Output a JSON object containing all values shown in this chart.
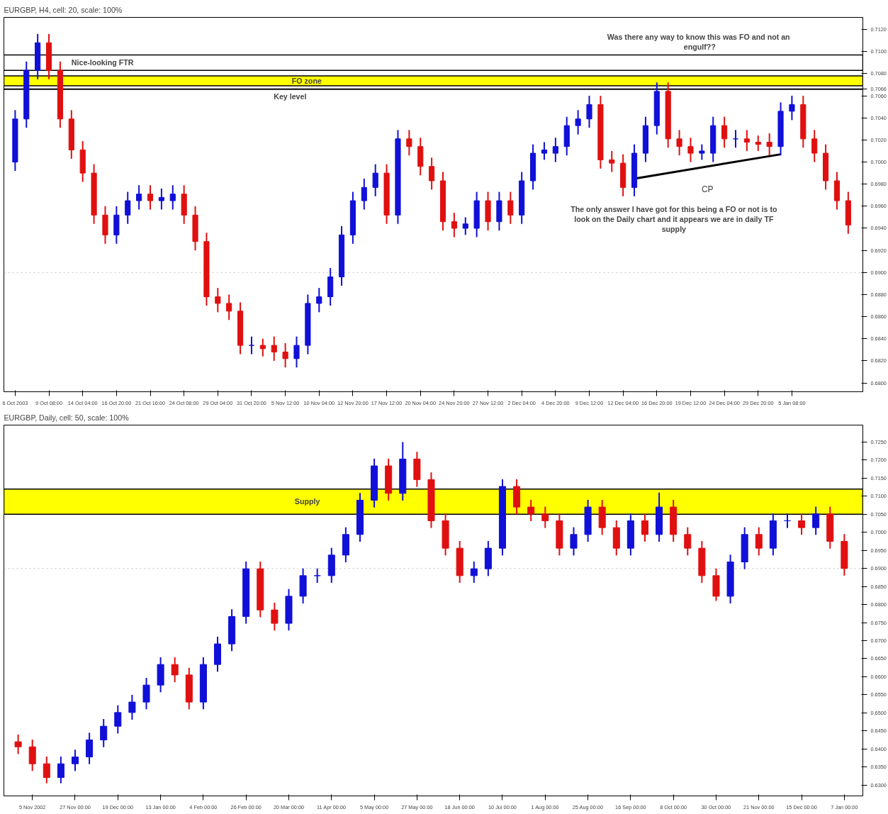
{
  "chart_data": [
    {
      "type": "candlestick",
      "title": "EURGBP, H4, cell: 20, scale: 100%",
      "categories": [
        "6 Oct 2003",
        null,
        null,
        "9 Oct 08:00",
        null,
        null,
        "14 Oct 04:00",
        null,
        null,
        "16 Oct 20:00",
        null,
        null,
        "21 Oct 16:00",
        null,
        null,
        "24 Oct 08:00",
        null,
        null,
        "29 Oct 04:00",
        null,
        null,
        "31 Oct 20:00",
        null,
        null,
        "5 Nov 12:00",
        null,
        null,
        "10 Nov 04:00",
        null,
        null,
        "12 Nov 20:00",
        null,
        null,
        "17 Nov 12:00",
        null,
        null,
        "20 Nov 04:00",
        null,
        null,
        "24 Nov 20:00",
        null,
        null,
        "27 Nov 12:00",
        null,
        null,
        "2 Dec 04:00",
        null,
        null,
        "4 Dec 20:00",
        null,
        null,
        "9 Dec 12:00",
        null,
        null,
        "12 Dec 04:00",
        null,
        null,
        "16 Dec 20:00",
        null,
        null,
        "19 Dec 12:00",
        null,
        null,
        "24 Dec 04:00",
        null,
        null,
        "29 Dec 20:00",
        null,
        null,
        "5 Jan 08:00",
        null,
        null,
        null,
        null,
        null
      ],
      "ohlc": [
        [
          0.7,
          0.7047,
          0.6992,
          0.7039
        ],
        [
          0.7039,
          0.7091,
          0.7031,
          0.7083
        ],
        [
          0.7083,
          0.7116,
          0.7075,
          0.7108
        ],
        [
          0.7108,
          0.7116,
          0.7075,
          0.7083
        ],
        [
          0.7083,
          0.7091,
          0.7031,
          0.7039
        ],
        [
          0.7039,
          0.7047,
          0.7003,
          0.7011
        ],
        [
          0.7011,
          0.7019,
          0.6982,
          0.699
        ],
        [
          0.699,
          0.6998,
          0.6944,
          0.6952
        ],
        [
          0.6952,
          0.696,
          0.6926,
          0.6934
        ],
        [
          0.6934,
          0.696,
          0.6926,
          0.6952
        ],
        [
          0.6952,
          0.6973,
          0.6944,
          0.6965
        ],
        [
          0.6965,
          0.6979,
          0.6957,
          0.6971
        ],
        [
          0.6971,
          0.6979,
          0.6957,
          0.6965
        ],
        [
          0.6965,
          0.6976,
          0.6957,
          0.6968
        ],
        [
          0.6965,
          0.6979,
          0.6957,
          0.6971
        ],
        [
          0.6971,
          0.6979,
          0.6944,
          0.6952
        ],
        [
          0.6952,
          0.696,
          0.692,
          0.6928
        ],
        [
          0.6928,
          0.6936,
          0.687,
          0.6878
        ],
        [
          0.6878,
          0.6886,
          0.6864,
          0.6872
        ],
        [
          0.6872,
          0.688,
          0.6857,
          0.6865
        ],
        [
          0.6865,
          0.6873,
          0.6826,
          0.6834
        ],
        [
          0.6834,
          0.6842,
          0.6826,
          0.6834
        ],
        [
          0.6834,
          0.684,
          0.6824,
          0.6831
        ],
        [
          0.6834,
          0.6842,
          0.682,
          0.6828
        ],
        [
          0.6828,
          0.6836,
          0.6814,
          0.6822
        ],
        [
          0.6822,
          0.6842,
          0.6814,
          0.6834
        ],
        [
          0.6834,
          0.688,
          0.6826,
          0.6872
        ],
        [
          0.6872,
          0.6886,
          0.6864,
          0.6878
        ],
        [
          0.6878,
          0.6904,
          0.687,
          0.6896
        ],
        [
          0.6896,
          0.6942,
          0.6888,
          0.6934
        ],
        [
          0.6934,
          0.6973,
          0.6926,
          0.6965
        ],
        [
          0.6965,
          0.6985,
          0.6957,
          0.6977
        ],
        [
          0.6977,
          0.6998,
          0.6969,
          0.699
        ],
        [
          0.699,
          0.6998,
          0.6944,
          0.6952
        ],
        [
          0.6952,
          0.7029,
          0.6944,
          0.7021
        ],
        [
          0.7021,
          0.7029,
          0.7006,
          0.7014
        ],
        [
          0.7014,
          0.7022,
          0.6988,
          0.6996
        ],
        [
          0.6996,
          0.7004,
          0.6975,
          0.6983
        ],
        [
          0.6983,
          0.6991,
          0.6938,
          0.6946
        ],
        [
          0.6946,
          0.6954,
          0.6932,
          0.694
        ],
        [
          0.694,
          0.695,
          0.6934,
          0.6944
        ],
        [
          0.694,
          0.6973,
          0.6932,
          0.6965
        ],
        [
          0.6965,
          0.6973,
          0.6938,
          0.6946
        ],
        [
          0.6946,
          0.6973,
          0.6938,
          0.6965
        ],
        [
          0.6965,
          0.6973,
          0.6944,
          0.6952
        ],
        [
          0.6952,
          0.6991,
          0.6944,
          0.6983
        ],
        [
          0.6983,
          0.7016,
          0.6975,
          0.7008
        ],
        [
          0.7008,
          0.7018,
          0.7002,
          0.7011
        ],
        [
          0.7008,
          0.7022,
          0.7,
          0.7014
        ],
        [
          0.7014,
          0.7041,
          0.7006,
          0.7033
        ],
        [
          0.7033,
          0.7047,
          0.7025,
          0.7039
        ],
        [
          0.7039,
          0.706,
          0.7031,
          0.7052
        ],
        [
          0.7052,
          0.706,
          0.6994,
          0.7002
        ],
        [
          0.7002,
          0.701,
          0.6991,
          0.6999
        ],
        [
          0.6999,
          0.7007,
          0.6969,
          0.6977
        ],
        [
          0.6977,
          0.7016,
          0.6969,
          0.7008
        ],
        [
          0.7008,
          0.7041,
          0.7,
          0.7033
        ],
        [
          0.7033,
          0.7072,
          0.7025,
          0.7064
        ],
        [
          0.7064,
          0.7072,
          0.7013,
          0.7021
        ],
        [
          0.7021,
          0.7029,
          0.7006,
          0.7014
        ],
        [
          0.7014,
          0.7022,
          0.7,
          0.7008
        ],
        [
          0.7008,
          0.7016,
          0.7002,
          0.701
        ],
        [
          0.7008,
          0.7041,
          0.7,
          0.7033
        ],
        [
          0.7033,
          0.7041,
          0.7013,
          0.7021
        ],
        [
          0.7021,
          0.7029,
          0.7013,
          0.7021
        ],
        [
          0.7021,
          0.7029,
          0.701,
          0.7018
        ],
        [
          0.7018,
          0.7024,
          0.701,
          0.7016
        ],
        [
          0.7018,
          0.7026,
          0.7006,
          0.7014
        ],
        [
          0.7014,
          0.7054,
          0.7006,
          0.7046
        ],
        [
          0.7046,
          0.706,
          0.7038,
          0.7052
        ],
        [
          0.7052,
          0.706,
          0.7013,
          0.7021
        ],
        [
          0.7021,
          0.7029,
          0.7,
          0.7008
        ],
        [
          0.7008,
          0.7016,
          0.6975,
          0.6983
        ],
        [
          0.6983,
          0.6991,
          0.6957,
          0.6965
        ],
        [
          0.6965,
          0.6973,
          0.6935,
          0.6943
        ]
      ],
      "series": [
        {
          "type": "line",
          "name": "CP",
          "color": "#000000",
          "values": [
            null,
            null,
            null,
            null,
            null,
            null,
            null,
            null,
            null,
            null,
            null,
            null,
            null,
            null,
            null,
            null,
            null,
            null,
            null,
            null,
            null,
            null,
            null,
            null,
            null,
            null,
            null,
            null,
            null,
            null,
            null,
            null,
            null,
            null,
            null,
            null,
            null,
            null,
            null,
            null,
            null,
            null,
            null,
            null,
            null,
            null,
            null,
            null,
            null,
            null,
            null,
            null,
            null,
            null,
            null,
            0.6985,
            null,
            null,
            null,
            null,
            null,
            null,
            null,
            null,
            null,
            null,
            null,
            null,
            0.7007,
            null,
            null,
            null,
            null,
            null,
            null
          ]
        }
      ],
      "ylim": [
        0.6792,
        0.7131
      ],
      "yticks": [
        {
          "value": 0.68,
          "label": "0.6800"
        },
        {
          "value": 0.682,
          "label": "0.6820"
        },
        {
          "value": 0.684,
          "label": "0.6840"
        },
        {
          "value": 0.686,
          "label": "0.6860"
        },
        {
          "value": 0.688,
          "label": "0.6880"
        },
        {
          "value": 0.69,
          "label": "0.6900"
        },
        {
          "value": 0.692,
          "label": "0.6920"
        },
        {
          "value": 0.694,
          "label": "0.6940"
        },
        {
          "value": 0.696,
          "label": "0.6960"
        },
        {
          "value": 0.698,
          "label": "0.6980"
        },
        {
          "value": 0.7,
          "label": "0.7000"
        },
        {
          "value": 0.702,
          "label": "0.7020"
        },
        {
          "value": 0.704,
          "label": "0.7040"
        },
        {
          "value": 0.706,
          "label": "0.7060"
        },
        0.7066,
        {
          "value": 0.708,
          "label": "0.7080"
        },
        {
          "value": 0.71,
          "label": "0.7100"
        },
        {
          "value": 0.712,
          "label": "0.7120"
        }
      ],
      "ref_lines": [
        {
          "axis": "y",
          "value": 0.7066,
          "label": "Key level",
          "color": "#000000",
          "line_style": "solid"
        },
        {
          "axis": "y",
          "value": 0.69,
          "label": null,
          "color": "#c0c0c0",
          "line_style": "dotted"
        }
      ],
      "bands": [
        {
          "axis": "y",
          "from": 0.7083,
          "to": 0.7097,
          "label": "Nice-looking FTR",
          "color": "#ffffff"
        },
        {
          "axis": "y",
          "from": 0.7069,
          "to": 0.7078,
          "label": "FO zone",
          "color": "#ffff00"
        }
      ],
      "annotations": [
        "Was there any way to know this was  FO and not an engulf??",
        "The only answer I have got for this being a FO or not is to look on the Daily chart and it appears we are in daily TF supply"
      ],
      "grid": false
    },
    {
      "type": "candlestick",
      "title": "EURGBP, Daily, cell: 50, scale: 100%",
      "categories": [
        null,
        "5 Nov 2002",
        null,
        null,
        "27 Nov 00:00",
        null,
        null,
        "19 Dec 00:00",
        null,
        null,
        "13 Jan 00:00",
        null,
        null,
        "4 Feb 00:00",
        null,
        null,
        "26 Feb 00:00",
        null,
        null,
        "20 Mar 00:00",
        null,
        null,
        "11 Apr 00:00",
        null,
        null,
        "5 May 00:00",
        null,
        null,
        "27 May 00:00",
        null,
        null,
        "18 Jun 00:00",
        null,
        null,
        "10 Jul 00:00",
        null,
        null,
        "1 Aug 00:00",
        null,
        null,
        "25 Aug 00:00",
        null,
        null,
        "16 Sep 00:00",
        null,
        null,
        "8 Oct 00:00",
        null,
        null,
        "30 Oct 00:00",
        null,
        null,
        "21 Nov 00:00",
        null,
        null,
        "15 Dec 00:00",
        null,
        null,
        "7 Jan 00:00"
      ],
      "ohlc": [
        [
          0.642,
          0.644,
          0.6386,
          0.6406
        ],
        [
          0.6406,
          0.6426,
          0.6339,
          0.6359
        ],
        [
          0.6359,
          0.6379,
          0.6305,
          0.6321
        ],
        [
          0.6321,
          0.6379,
          0.6305,
          0.6359
        ],
        [
          0.6359,
          0.6398,
          0.6339,
          0.6378
        ],
        [
          0.6378,
          0.6445,
          0.6358,
          0.6425
        ],
        [
          0.6425,
          0.6483,
          0.6405,
          0.6463
        ],
        [
          0.6463,
          0.6521,
          0.6443,
          0.6501
        ],
        [
          0.6501,
          0.655,
          0.6481,
          0.653
        ],
        [
          0.653,
          0.6597,
          0.651,
          0.6577
        ],
        [
          0.6577,
          0.6654,
          0.6557,
          0.6634
        ],
        [
          0.6634,
          0.6654,
          0.6585,
          0.6605
        ],
        [
          0.6605,
          0.6625,
          0.651,
          0.653
        ],
        [
          0.653,
          0.6654,
          0.651,
          0.6634
        ],
        [
          0.6634,
          0.6711,
          0.6614,
          0.6691
        ],
        [
          0.6691,
          0.6787,
          0.6671,
          0.6767
        ],
        [
          0.6767,
          0.6919,
          0.6747,
          0.6899
        ],
        [
          0.6899,
          0.6919,
          0.6765,
          0.6785
        ],
        [
          0.6785,
          0.6805,
          0.6728,
          0.6748
        ],
        [
          0.6748,
          0.6843,
          0.6728,
          0.6823
        ],
        [
          0.6823,
          0.69,
          0.6803,
          0.688
        ],
        [
          0.688,
          0.69,
          0.686,
          0.688
        ],
        [
          0.688,
          0.6957,
          0.686,
          0.6937
        ],
        [
          0.6937,
          0.7014,
          0.6917,
          0.6994
        ],
        [
          0.6994,
          0.7109,
          0.6974,
          0.7089
        ],
        [
          0.7089,
          0.7204,
          0.7069,
          0.7184
        ],
        [
          0.7184,
          0.7204,
          0.7088,
          0.7108
        ],
        [
          0.7108,
          0.725,
          0.7088,
          0.7203
        ],
        [
          0.7203,
          0.7223,
          0.7126,
          0.7146
        ],
        [
          0.7146,
          0.7166,
          0.7012,
          0.7032
        ],
        [
          0.7032,
          0.7052,
          0.6936,
          0.6956
        ],
        [
          0.6956,
          0.6976,
          0.686,
          0.688
        ],
        [
          0.688,
          0.6919,
          0.686,
          0.6899
        ],
        [
          0.6899,
          0.6976,
          0.6879,
          0.6956
        ],
        [
          0.6956,
          0.7147,
          0.6936,
          0.7127
        ],
        [
          0.7127,
          0.7147,
          0.705,
          0.707
        ],
        [
          0.707,
          0.709,
          0.7031,
          0.7051
        ],
        [
          0.7051,
          0.7071,
          0.7012,
          0.7032
        ],
        [
          0.7032,
          0.7052,
          0.6936,
          0.6956
        ],
        [
          0.6956,
          0.7014,
          0.6936,
          0.6994
        ],
        [
          0.6994,
          0.709,
          0.6974,
          0.707
        ],
        [
          0.707,
          0.709,
          0.6993,
          0.7013
        ],
        [
          0.7013,
          0.7033,
          0.6936,
          0.6956
        ],
        [
          0.6956,
          0.7052,
          0.6936,
          0.7032
        ],
        [
          0.7032,
          0.7052,
          0.6974,
          0.6994
        ],
        [
          0.6994,
          0.711,
          0.6974,
          0.707
        ],
        [
          0.707,
          0.709,
          0.6974,
          0.6994
        ],
        [
          0.6994,
          0.7014,
          0.6936,
          0.6956
        ],
        [
          0.6956,
          0.6976,
          0.686,
          0.688
        ],
        [
          0.688,
          0.69,
          0.681,
          0.6823
        ],
        [
          0.6823,
          0.6938,
          0.6803,
          0.6918
        ],
        [
          0.6918,
          0.7014,
          0.6898,
          0.6994
        ],
        [
          0.6994,
          0.7014,
          0.6936,
          0.6956
        ],
        [
          0.6956,
          0.7052,
          0.6936,
          0.7032
        ],
        [
          0.7032,
          0.7052,
          0.7012,
          0.7032
        ],
        [
          0.7032,
          0.7052,
          0.6993,
          0.7013
        ],
        [
          0.7013,
          0.7071,
          0.6993,
          0.7051
        ],
        [
          0.7051,
          0.7071,
          0.6955,
          0.6975
        ],
        [
          0.6975,
          0.6995,
          0.688,
          0.69
        ]
      ],
      "ylim": [
        0.627,
        0.7297
      ],
      "yticks": [
        {
          "value": 0.63,
          "label": "0.6300"
        },
        {
          "value": 0.635,
          "label": "0.6350"
        },
        {
          "value": 0.64,
          "label": "0.6400"
        },
        {
          "value": 0.645,
          "label": "0.6450"
        },
        {
          "value": 0.65,
          "label": "0.6500"
        },
        {
          "value": 0.655,
          "label": "0.6550"
        },
        {
          "value": 0.66,
          "label": "0.6600"
        },
        {
          "value": 0.665,
          "label": "0.6650"
        },
        {
          "value": 0.67,
          "label": "0.6700"
        },
        {
          "value": 0.675,
          "label": "0.6750"
        },
        {
          "value": 0.68,
          "label": "0.6800"
        },
        {
          "value": 0.685,
          "label": "0.6850"
        },
        {
          "value": 0.69,
          "label": "0.6900"
        },
        {
          "value": 0.695,
          "label": "0.6950"
        },
        {
          "value": 0.7,
          "label": "0.7000"
        },
        {
          "value": 0.705,
          "label": "0.7050"
        },
        {
          "value": 0.71,
          "label": "0.7100"
        },
        {
          "value": 0.715,
          "label": "0.7150"
        },
        {
          "value": 0.72,
          "label": "0.7200"
        },
        {
          "value": 0.725,
          "label": "0.7250"
        }
      ],
      "ref_lines": [
        {
          "axis": "y",
          "value": 0.69,
          "label": null,
          "color": "#c0c0c0",
          "line_style": "dotted"
        }
      ],
      "bands": [
        {
          "axis": "y",
          "from": 0.705,
          "to": 0.712,
          "label": "Supply",
          "color": "#ffff00"
        }
      ],
      "grid": false
    }
  ]
}
